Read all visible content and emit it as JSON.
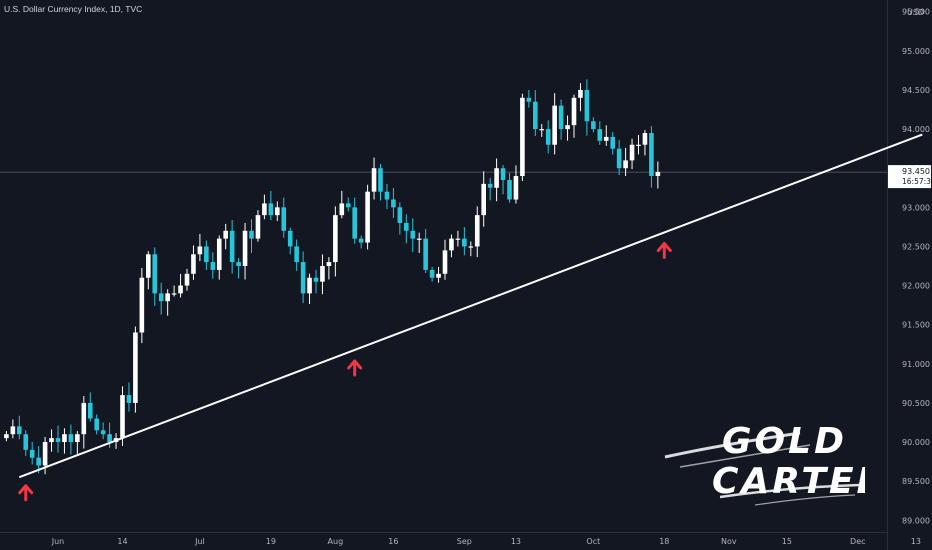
{
  "header": {
    "title": "U.S. Dollar Currency Index, 1D, TVC"
  },
  "colors": {
    "background": "#131722",
    "up_candle": "#ffffff",
    "down_candle": "#26c6da",
    "trendline": "#ffffff",
    "arrow": "#f23645",
    "price_line": "#5d606b"
  },
  "chart_data": {
    "type": "candlestick",
    "title": "U.S. Dollar Currency Index, 1D, TVC",
    "currency": "USD",
    "last_price": "93.450",
    "countdown": "16:57:37",
    "ylim": [
      88.85,
      95.65
    ],
    "y_ticks": [
      "95.500",
      "95.000",
      "94.500",
      "94.000",
      "93.500",
      "93.000",
      "92.500",
      "92.000",
      "91.500",
      "91.000",
      "90.500",
      "90.000",
      "89.500",
      "89.000"
    ],
    "x_ticks": [
      "Jun",
      "14",
      "Jul",
      "19",
      "Aug",
      "16",
      "Sep",
      "13",
      "Oct",
      "18",
      "Nov",
      "15",
      "Dec",
      "13"
    ],
    "x_tick_index": [
      8,
      18,
      30,
      41,
      51,
      60,
      71,
      79,
      91,
      102,
      112,
      121,
      132,
      141
    ],
    "closes": [
      90.1,
      90.2,
      90.1,
      89.9,
      89.8,
      89.7,
      90.0,
      90.05,
      90.0,
      90.1,
      90.0,
      90.1,
      90.5,
      90.3,
      90.15,
      90.1,
      90.0,
      90.05,
      90.6,
      90.5,
      91.4,
      92.1,
      92.4,
      91.9,
      91.8,
      91.9,
      91.9,
      92.0,
      92.15,
      92.4,
      92.5,
      92.3,
      92.2,
      92.6,
      92.7,
      92.3,
      92.25,
      92.7,
      92.6,
      92.9,
      93.05,
      92.9,
      93.0,
      92.7,
      92.5,
      92.3,
      91.9,
      92.1,
      92.05,
      92.25,
      92.3,
      92.9,
      93.05,
      93.0,
      92.6,
      92.55,
      93.2,
      93.5,
      93.2,
      93.1,
      93.0,
      92.8,
      92.7,
      92.6,
      92.6,
      92.2,
      92.1,
      92.15,
      92.45,
      92.6,
      92.6,
      92.5,
      92.5,
      92.9,
      93.3,
      93.25,
      93.5,
      93.35,
      93.1,
      93.4,
      94.4,
      94.35,
      94.0,
      94.0,
      93.8,
      94.3,
      94.0,
      94.05,
      94.4,
      94.5,
      94.1,
      94.0,
      93.85,
      93.9,
      93.75,
      93.5,
      93.6,
      93.8,
      93.8,
      93.95,
      93.4,
      93.45
    ],
    "trendline": {
      "from_index": 2,
      "from_value": 89.55,
      "to_index": 142,
      "to_value": 93.93
    },
    "support_arrows": [
      3,
      54,
      102
    ]
  },
  "watermark": {
    "line1": "GOLD",
    "line2": "CARTEL"
  }
}
